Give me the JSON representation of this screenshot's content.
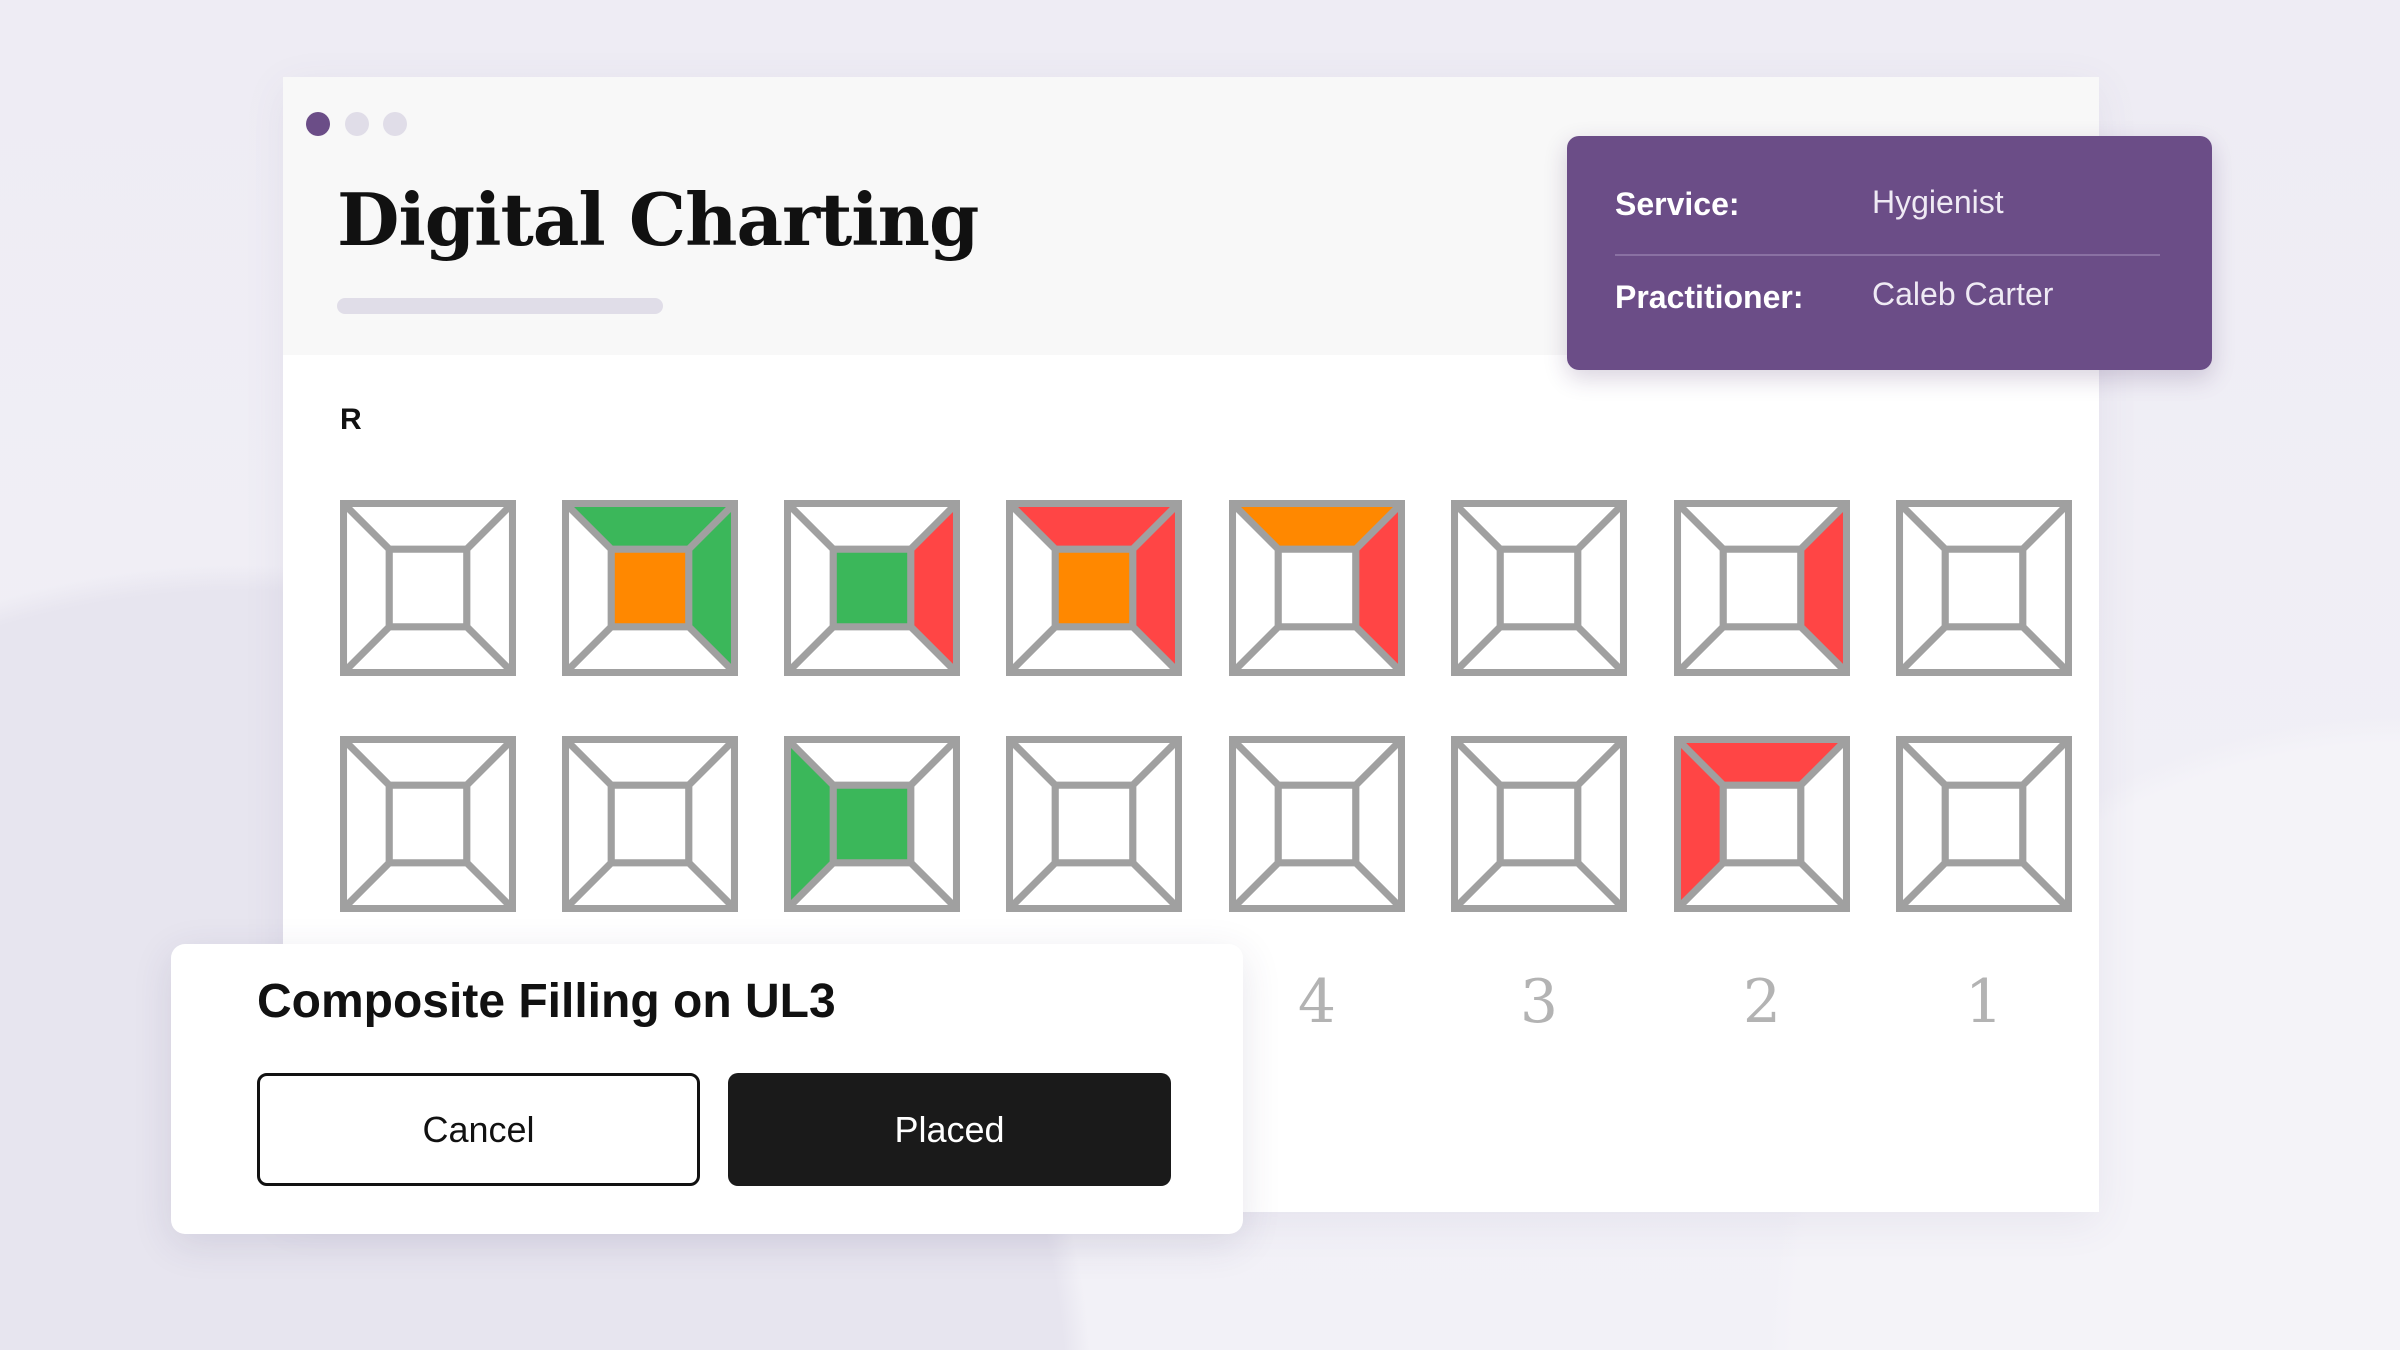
{
  "window": {
    "controls": [
      "close",
      "minimize",
      "maximize"
    ],
    "accent": "#6b4d87"
  },
  "header": {
    "title": "Digital Charting"
  },
  "info_card": {
    "service_label": "Service:",
    "service_value": "Hygienist",
    "practitioner_label": "Practitioner:",
    "practitioner_value": "Caleb Carter",
    "background": "#6b4d87"
  },
  "chart": {
    "side_label": "R",
    "colors": {
      "green": "#3bb75a",
      "orange": "#ff8800",
      "red": "#ff4545",
      "outline": "#a0a0a0"
    },
    "upper_row": [
      {},
      {
        "top": "green",
        "right": "green",
        "center": "orange"
      },
      {
        "right": "red",
        "center": "green"
      },
      {
        "top": "red",
        "right": "red",
        "center": "orange"
      },
      {
        "top": "orange",
        "right": "red"
      },
      {},
      {
        "right": "red"
      },
      {}
    ],
    "lower_row": [
      {},
      {},
      {
        "left": "green",
        "center": "green"
      },
      {},
      {},
      {},
      {
        "top": "red",
        "left": "red"
      },
      {}
    ],
    "tooth_numbers": [
      "4",
      "3",
      "2",
      "1"
    ]
  },
  "dialog": {
    "title": "Composite Filling on UL3",
    "cancel_label": "Cancel",
    "confirm_label": "Placed"
  }
}
